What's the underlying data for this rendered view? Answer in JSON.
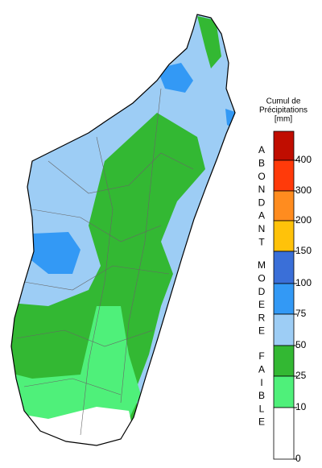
{
  "legend": {
    "title": [
      "Cumul de",
      "Précipitations",
      "[mm]"
    ],
    "groups": [
      {
        "letters": [
          "A",
          "B",
          "O",
          "N",
          "D",
          "A",
          "N",
          "T"
        ]
      },
      {
        "letters": [
          "M",
          "O",
          "D",
          "E",
          "R",
          "E"
        ]
      },
      {
        "letters": [
          "F",
          "A",
          "I",
          "B",
          "L",
          "E"
        ]
      }
    ],
    "colors": [
      "#c00d00",
      "#ff3a0a",
      "#ff8c1f",
      "#ffc20a",
      "#3a6fd8",
      "#3399f5",
      "#9dcdf5",
      "#33b833",
      "#4ff07a",
      "#ffffff"
    ],
    "ticks": [
      400,
      300,
      200,
      150,
      100,
      75,
      50,
      25,
      10,
      0
    ]
  }
}
